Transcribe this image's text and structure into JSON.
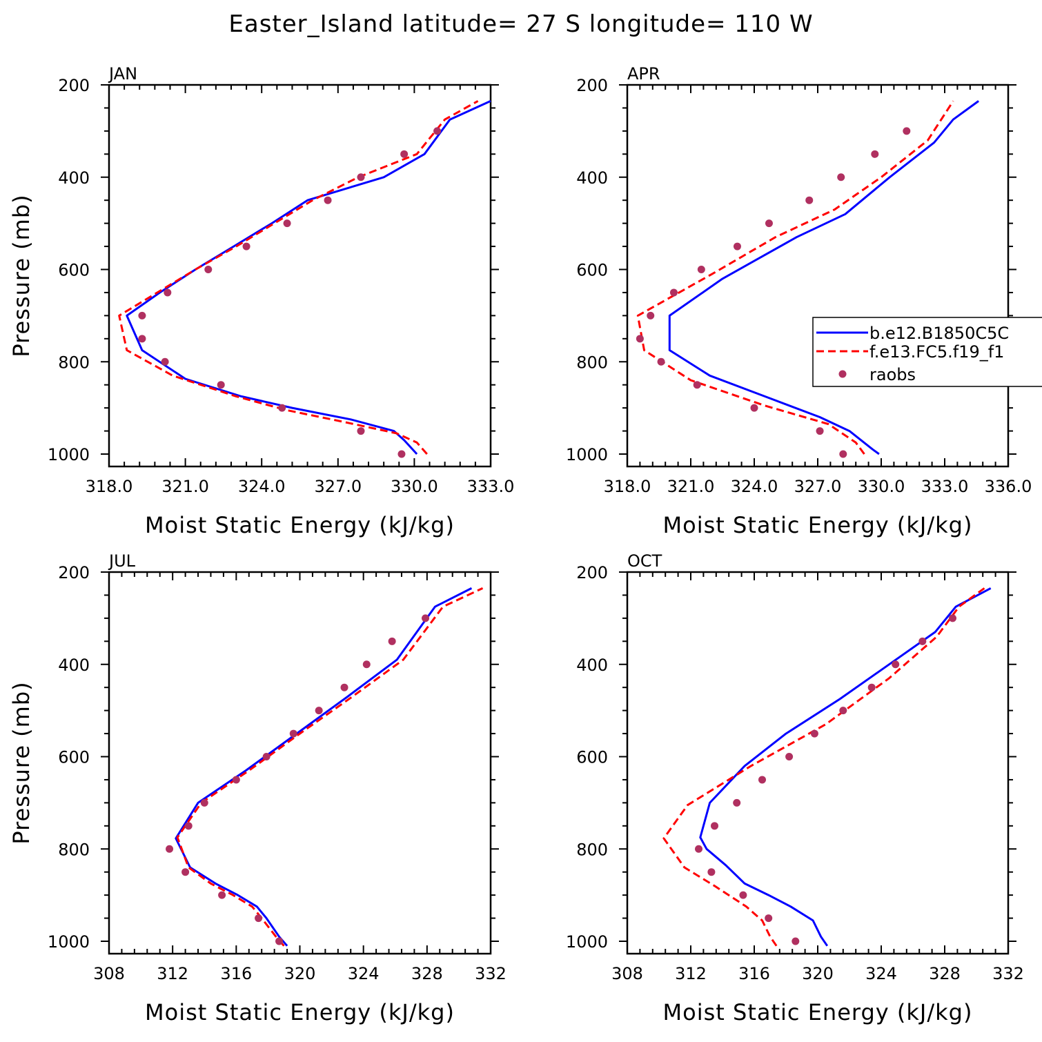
{
  "title": "Easter_Island  latitude= 27 S longitude= 110 W",
  "legend": {
    "entries": [
      {
        "label": "b.e12.B1850C5C",
        "style": "solid",
        "color": "#0000ff"
      },
      {
        "label": "f.e13.FC5.f19_f1",
        "style": "dashed",
        "color": "#ff0000"
      },
      {
        "label": "raobs",
        "style": "dot",
        "color": "#b03060"
      }
    ]
  },
  "colors": {
    "b_model": "#0000ff",
    "f_model": "#ff0000",
    "raobs": "#b03060"
  },
  "chart_data": [
    {
      "type": "line",
      "panel_label": "JAN",
      "xlabel": "Moist Static Energy (kJ/kg)",
      "ylabel": "Pressure (mb)",
      "xlim": [
        318,
        333
      ],
      "ylim": [
        1000,
        200
      ],
      "xticks": [
        "318.0",
        "321.0",
        "324.0",
        "327.0",
        "330.0",
        "333.0"
      ],
      "yticks": [
        "200",
        "400",
        "600",
        "800",
        "1000"
      ],
      "series": [
        {
          "name": "b.e12.B1850C5C",
          "style": "solid",
          "x": [
            330.1,
            329.6,
            329.2,
            327.5,
            325.2,
            323.2,
            321.0,
            319.3,
            318.7,
            320.0,
            321.4,
            322.9,
            324.4,
            325.8,
            328.8,
            330.4,
            331.4,
            333.0
          ],
          "y": [
            1000,
            970,
            950,
            925,
            900,
            875,
            837,
            775,
            700,
            650,
            600,
            550,
            500,
            450,
            400,
            350,
            275,
            235
          ]
        },
        {
          "name": "f.e13.FC5.f19_f1",
          "style": "dashed",
          "x": [
            330.5,
            330.1,
            329.3,
            327.2,
            325.0,
            323.0,
            320.5,
            318.7,
            318.4,
            319.9,
            321.4,
            323.0,
            324.5,
            326.0,
            327.8,
            330.1,
            331.2,
            332.5
          ],
          "y": [
            1000,
            975,
            955,
            930,
            905,
            875,
            830,
            775,
            700,
            650,
            600,
            550,
            500,
            450,
            400,
            350,
            275,
            235
          ]
        },
        {
          "name": "raobs",
          "style": "dot",
          "x": [
            329.5,
            327.9,
            324.8,
            322.4,
            320.2,
            319.3,
            319.3,
            320.3,
            321.9,
            323.4,
            325.0,
            326.6,
            327.9,
            329.6,
            330.9
          ],
          "y": [
            1000,
            950,
            900,
            850,
            800,
            750,
            700,
            650,
            600,
            550,
            500,
            450,
            400,
            350,
            300
          ]
        }
      ]
    },
    {
      "type": "line",
      "panel_label": "APR",
      "xlabel": "Moist Static Energy (kJ/kg)",
      "ylabel": "",
      "xlim": [
        318,
        336
      ],
      "ylim": [
        1000,
        200
      ],
      "xticks": [
        "318.0",
        "321.0",
        "324.0",
        "327.0",
        "330.0",
        "333.0",
        "336.0"
      ],
      "yticks": [
        "200",
        "400",
        "600",
        "800",
        "1000"
      ],
      "series": [
        {
          "name": "b.e12.B1850C5C",
          "style": "solid",
          "x": [
            329.9,
            329.6,
            328.5,
            327.1,
            324.5,
            321.9,
            320.0,
            320.0,
            322.5,
            326.0,
            328.3,
            330.4,
            332.5,
            333.4,
            334.6
          ],
          "y": [
            1000,
            990,
            950,
            920,
            875,
            830,
            775,
            700,
            620,
            530,
            480,
            400,
            325,
            275,
            235
          ]
        },
        {
          "name": "f.e13.FC5.f19_f1",
          "style": "dashed",
          "x": [
            329.2,
            328.8,
            327.5,
            324.5,
            321.0,
            318.8,
            318.5,
            322.0,
            325.0,
            327.8,
            330.0,
            332.2,
            333.4
          ],
          "y": [
            1000,
            975,
            935,
            895,
            840,
            775,
            700,
            610,
            530,
            470,
            400,
            320,
            235
          ]
        },
        {
          "name": "raobs",
          "style": "dot",
          "x": [
            328.2,
            327.1,
            324.0,
            321.3,
            319.6,
            318.6,
            319.1,
            320.2,
            321.5,
            323.2,
            324.7,
            326.6,
            328.1,
            329.7,
            331.2
          ],
          "y": [
            1000,
            950,
            900,
            850,
            800,
            750,
            700,
            650,
            600,
            550,
            500,
            450,
            400,
            350,
            300
          ]
        }
      ]
    },
    {
      "type": "line",
      "panel_label": "JUL",
      "xlabel": "Moist Static Energy (kJ/kg)",
      "ylabel": "Pressure (mb)",
      "xlim": [
        308,
        332
      ],
      "ylim": [
        1000,
        200
      ],
      "xticks": [
        "308",
        "312",
        "316",
        "320",
        "324",
        "328",
        "332"
      ],
      "yticks": [
        "200",
        "400",
        "600",
        "800",
        "1000"
      ],
      "series": [
        {
          "name": "b.e12.B1850C5C",
          "style": "solid",
          "x": [
            319.2,
            318.7,
            317.9,
            317.3,
            316.1,
            314.7,
            313.1,
            312.2,
            313.6,
            316.6,
            319.8,
            323.0,
            326.1,
            328.5,
            330.8
          ],
          "y": [
            1010,
            990,
            950,
            925,
            900,
            875,
            840,
            777,
            700,
            630,
            550,
            470,
            390,
            275,
            235
          ]
        },
        {
          "name": "f.e13.FC5.f19_f1",
          "style": "dashed",
          "x": [
            319.0,
            318.5,
            317.6,
            317.0,
            315.8,
            314.4,
            313.0,
            312.3,
            313.8,
            316.8,
            320.0,
            323.3,
            326.5,
            329.0,
            331.5
          ],
          "y": [
            1010,
            990,
            950,
            925,
            900,
            875,
            840,
            775,
            700,
            630,
            550,
            470,
            390,
            275,
            235
          ]
        },
        {
          "name": "raobs",
          "style": "dot",
          "x": [
            318.7,
            317.4,
            315.1,
            312.8,
            311.8,
            313.0,
            314.0,
            316.0,
            317.9,
            319.6,
            321.2,
            322.8,
            324.2,
            325.8,
            327.9
          ],
          "y": [
            1000,
            950,
            900,
            850,
            800,
            750,
            700,
            650,
            600,
            550,
            500,
            450,
            400,
            350,
            300
          ]
        }
      ]
    },
    {
      "type": "line",
      "panel_label": "OCT",
      "xlabel": "Moist Static Energy (kJ/kg)",
      "ylabel": "",
      "xlim": [
        308,
        332
      ],
      "ylim": [
        1000,
        200
      ],
      "xticks": [
        "308",
        "312",
        "316",
        "320",
        "324",
        "328",
        "332"
      ],
      "yticks": [
        "200",
        "400",
        "600",
        "800",
        "1000"
      ],
      "series": [
        {
          "name": "b.e12.B1850C5C",
          "style": "solid",
          "x": [
            320.6,
            320.2,
            319.7,
            318.3,
            316.9,
            315.4,
            314.2,
            313.0,
            312.6,
            313.2,
            315.4,
            318.0,
            321.4,
            324.5,
            327.4,
            328.7,
            330.9
          ],
          "y": [
            1010,
            990,
            955,
            925,
            900,
            875,
            835,
            800,
            775,
            700,
            620,
            550,
            475,
            400,
            330,
            275,
            235
          ]
        },
        {
          "name": "f.e13.FC5.f19_f1",
          "style": "dashed",
          "x": [
            317.4,
            317.0,
            316.5,
            315.5,
            313.5,
            311.6,
            310.3,
            311.8,
            315.8,
            320.5,
            324.5,
            327.5,
            328.9,
            330.5
          ],
          "y": [
            1010,
            990,
            955,
            925,
            880,
            840,
            777,
            705,
            620,
            530,
            430,
            340,
            275,
            235
          ]
        },
        {
          "name": "raobs",
          "style": "dot",
          "x": [
            318.6,
            316.9,
            315.3,
            313.3,
            312.5,
            313.5,
            314.9,
            316.5,
            318.2,
            319.8,
            321.6,
            323.4,
            324.9,
            326.6,
            328.5
          ],
          "y": [
            1000,
            950,
            900,
            850,
            800,
            750,
            700,
            650,
            600,
            550,
            500,
            450,
            400,
            350,
            300
          ]
        }
      ]
    }
  ]
}
